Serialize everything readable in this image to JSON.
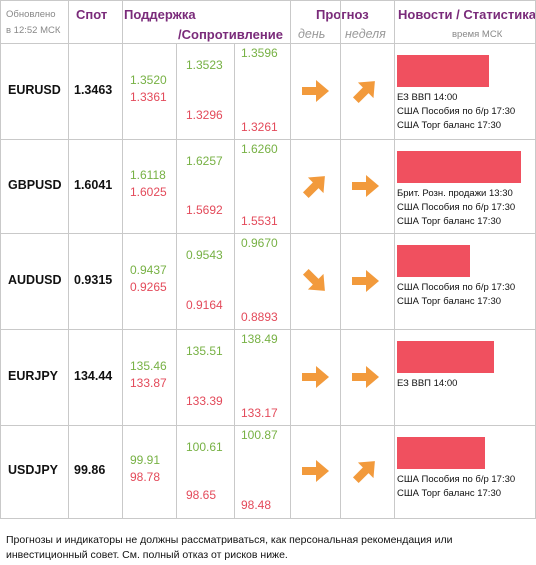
{
  "header": {
    "updated_line1": "Обновлено",
    "updated_line2": "в 12:52 МСК",
    "spot": "Спот",
    "support": "Поддержка",
    "resistance": "/Сопротивление",
    "forecast": "Прогноз",
    "day": "день",
    "week": "неделя",
    "news": "Новости / Статистика",
    "time": "время МСК"
  },
  "colors": {
    "support_green": "#77b144",
    "resistance_red": "#e34a5a",
    "arrow_orange": "#f29a3c",
    "news_bar": "#f0505f",
    "header_purple": "#7a2b7a"
  },
  "rows": [
    {
      "pair": "EURUSD",
      "spot": "1.3463",
      "s1": "1.3520",
      "r1": "1.3361",
      "s2": "1.3523",
      "r2": "1.3296",
      "s3": "1.3596",
      "r3": "1.3261",
      "day_arrow": "arrow-right-icon",
      "week_arrow": "arrow-up-right-icon",
      "news_level": 0.72,
      "news": [
        "ЕЗ ВВП 14:00",
        "США Пособия по б/р 17:30",
        "США Торг баланс 17:30"
      ]
    },
    {
      "pair": "GBPUSD",
      "spot": "1.6041",
      "s1": "1.6118",
      "r1": "1.6025",
      "s2": "1.6257",
      "r2": "1.5692",
      "s3": "1.6260",
      "r3": "1.5531",
      "day_arrow": "arrow-up-right-icon",
      "week_arrow": "arrow-right-icon",
      "news_level": 0.97,
      "news": [
        "Брит. Розн. продажи 13:30",
        "США Пособия по б/р 17:30",
        "США Торг баланс 17:30"
      ]
    },
    {
      "pair": "AUDUSD",
      "spot": "0.9315",
      "s1": "0.9437",
      "r1": "0.9265",
      "s2": "0.9543",
      "r2": "0.9164",
      "s3": "0.9670",
      "r3": "0.8893",
      "day_arrow": "arrow-down-right-icon",
      "week_arrow": "arrow-right-icon",
      "news_level": 0.57,
      "news": [
        "США Пособия по б/р 17:30",
        "США Торг баланс 17:30"
      ]
    },
    {
      "pair": "EURJPY",
      "spot": "134.44",
      "s1": "135.46",
      "r1": "133.87",
      "s2": "135.51",
      "r2": "133.39",
      "s3": "138.49",
      "r3": "133.17",
      "day_arrow": "arrow-right-icon",
      "week_arrow": "arrow-right-icon",
      "news_level": 0.76,
      "news": [
        "ЕЗ ВВП 14:00"
      ]
    },
    {
      "pair": "USDJPY",
      "spot": "99.86",
      "s1": "99.91",
      "r1": "98.78",
      "s2": "100.61",
      "r2": "98.65",
      "s3": "100.87",
      "r3": "98.48",
      "day_arrow": "arrow-right-icon",
      "week_arrow": "arrow-up-right-icon",
      "news_level": 0.69,
      "news": [
        "США Пособия по б/р 17:30",
        "США Торг баланс 17:30"
      ]
    }
  ],
  "footer": {
    "disclaimer": "Прогнозы и индикаторы не должны рассматриваться, как персональная рекомендация или инвестиционный совет. См. полный отказ от рисков ниже."
  }
}
